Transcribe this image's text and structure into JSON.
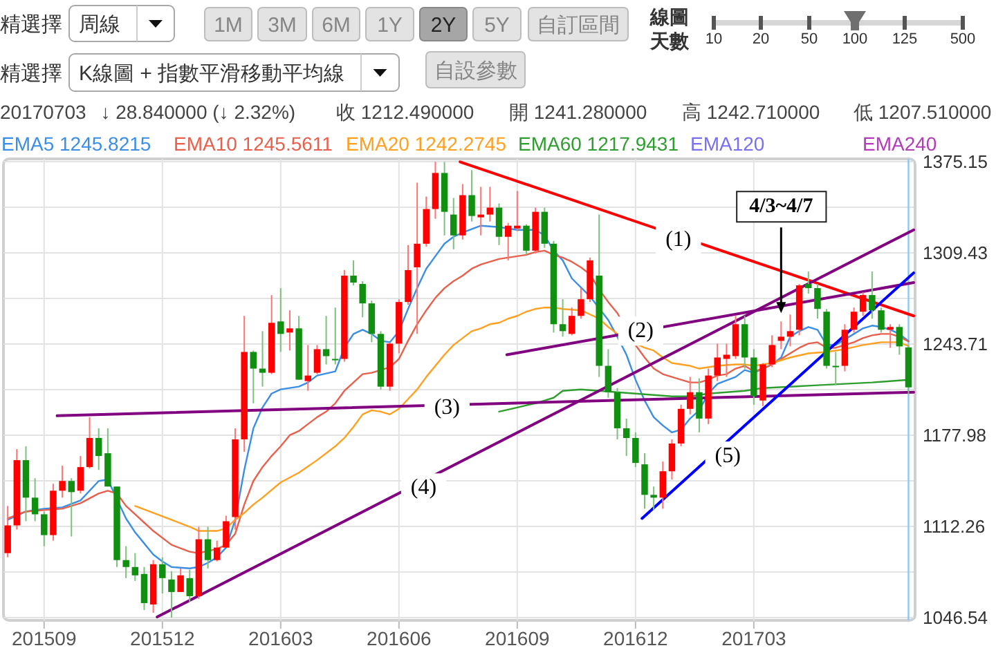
{
  "chart_data": {
    "type": "candlestick",
    "annotations": [
      "精選擇",
      "周線",
      "1M",
      "3M",
      "6M",
      "1Y",
      "2Y",
      "5Y",
      "自訂區間",
      "線圖",
      "天數",
      "10",
      "20",
      "50",
      "100",
      "125",
      "500",
      "精選擇",
      "K線圖 + 指數平滑移動平均線",
      "自設參數",
      "20170703",
      "↓ 28.840000 (↓ 2.32%)",
      "收 1212.490000",
      "開 1241.280000",
      "高 1242.710000",
      "低 1207.510000",
      {
        "text": "(1)",
        "x": "2017-01-07",
        "y": 1319
      },
      {
        "text": "(2)",
        "x": "2016-12-09",
        "y": 1253
      },
      {
        "text": "(3)",
        "x": "2016-07-13",
        "y": 1198
      },
      {
        "text": "(4)",
        "x": "2016-06-25",
        "y": 1140
      },
      {
        "text": "(5)",
        "x": "2017-02-14",
        "y": 1163
      },
      {
        "text": "4/3~4/7",
        "x": "2017-03-27",
        "y": 1265
      }
    ],
    "x": [
      "2015-08-10",
      "2015-08-17",
      "2015-08-24",
      "2015-08-31",
      "2015-09-07",
      "2015-09-14",
      "2015-09-21",
      "2015-09-28",
      "2015-10-05",
      "2015-10-12",
      "2015-10-19",
      "2015-10-26",
      "2015-11-02",
      "2015-11-09",
      "2015-11-16",
      "2015-11-23",
      "2015-11-30",
      "2015-12-07",
      "2015-12-14",
      "2015-12-21",
      "2015-12-28",
      "2016-01-04",
      "2016-01-11",
      "2016-01-18",
      "2016-01-25",
      "2016-02-01",
      "2016-02-08",
      "2016-02-15",
      "2016-02-22",
      "2016-02-29",
      "2016-03-07",
      "2016-03-14",
      "2016-03-21",
      "2016-03-28",
      "2016-04-04",
      "2016-04-11",
      "2016-04-18",
      "2016-04-25",
      "2016-05-02",
      "2016-05-09",
      "2016-05-16",
      "2016-05-23",
      "2016-05-30",
      "2016-06-06",
      "2016-06-13",
      "2016-06-20",
      "2016-06-27",
      "2016-07-04",
      "2016-07-11",
      "2016-07-18",
      "2016-07-25",
      "2016-08-01",
      "2016-08-08",
      "2016-08-15",
      "2016-08-22",
      "2016-08-29",
      "2016-09-05",
      "2016-09-12",
      "2016-09-19",
      "2016-09-26",
      "2016-10-03",
      "2016-10-10",
      "2016-10-17",
      "2016-10-24",
      "2016-10-31",
      "2016-11-07",
      "2016-11-14",
      "2016-11-21",
      "2016-11-28",
      "2016-12-05",
      "2016-12-12",
      "2016-12-19",
      "2016-12-26",
      "2017-01-02",
      "2017-01-09",
      "2017-01-16",
      "2017-01-23",
      "2017-01-30",
      "2017-02-06",
      "2017-02-13",
      "2017-02-20",
      "2017-02-27",
      "2017-03-06",
      "2017-03-13",
      "2017-03-20",
      "2017-03-27",
      "2017-04-03",
      "2017-04-10",
      "2017-04-17",
      "2017-04-24",
      "2017-05-01",
      "2017-05-08",
      "2017-05-15",
      "2017-05-22",
      "2017-05-29",
      "2017-06-05",
      "2017-06-12",
      "2017-06-19",
      "2017-06-26",
      "2017-07-03"
    ],
    "ohlc": [
      [
        1093,
        1127,
        1090,
        1113
      ],
      [
        1113,
        1168,
        1110,
        1160
      ],
      [
        1160,
        1170,
        1116,
        1133
      ],
      [
        1133,
        1147,
        1116,
        1121
      ],
      [
        1121,
        1123,
        1098,
        1106
      ],
      [
        1106,
        1143,
        1102,
        1138
      ],
      [
        1138,
        1156,
        1133,
        1145
      ],
      [
        1145,
        1147,
        1105,
        1137
      ],
      [
        1138,
        1163,
        1136,
        1155
      ],
      [
        1155,
        1191,
        1154,
        1176
      ],
      [
        1176,
        1183,
        1153,
        1163
      ],
      [
        1165,
        1183,
        1141,
        1141
      ],
      [
        1141,
        1141,
        1083,
        1088
      ],
      [
        1088,
        1098,
        1075,
        1083
      ],
      [
        1083,
        1093,
        1073,
        1077
      ],
      [
        1078,
        1083,
        1052,
        1057
      ],
      [
        1056,
        1088,
        1050,
        1085
      ],
      [
        1085,
        1090,
        1064,
        1075
      ],
      [
        1074,
        1080,
        1046.54,
        1065
      ],
      [
        1065,
        1082,
        1065,
        1077
      ],
      [
        1075,
        1081,
        1058,
        1062
      ],
      [
        1062,
        1112,
        1060,
        1103
      ],
      [
        1103,
        1112,
        1082,
        1088
      ],
      [
        1088,
        1102,
        1087,
        1097
      ],
      [
        1097,
        1120,
        1097,
        1116
      ],
      [
        1119,
        1183,
        1110,
        1175
      ],
      [
        1175,
        1264,
        1166,
        1238
      ],
      [
        1238,
        1239,
        1201,
        1226
      ],
      [
        1226,
        1253,
        1213,
        1223
      ],
      [
        1223,
        1279,
        1222,
        1259
      ],
      [
        1260,
        1284,
        1238,
        1251
      ],
      [
        1252,
        1268,
        1239,
        1255
      ],
      [
        1255,
        1264,
        1218,
        1218
      ],
      [
        1217,
        1243,
        1210,
        1221
      ],
      [
        1223,
        1243,
        1222,
        1240
      ],
      [
        1240,
        1264,
        1229,
        1235
      ],
      [
        1233,
        1270,
        1229,
        1232
      ],
      [
        1233,
        1297,
        1231,
        1293
      ],
      [
        1293,
        1304,
        1286,
        1288
      ],
      [
        1287,
        1289,
        1263,
        1273
      ],
      [
        1273,
        1275,
        1245,
        1251
      ],
      [
        1251,
        1253,
        1211,
        1213
      ],
      [
        1213,
        1245,
        1210,
        1244
      ],
      [
        1244,
        1276,
        1237,
        1274
      ],
      [
        1274,
        1315,
        1272,
        1297
      ],
      [
        1299,
        1360,
        1251,
        1316
      ],
      [
        1316,
        1350,
        1314,
        1341
      ],
      [
        1341,
        1375.15,
        1334,
        1367
      ],
      [
        1367,
        1375,
        1322,
        1339
      ],
      [
        1337,
        1349,
        1312,
        1322
      ],
      [
        1322,
        1359,
        1319,
        1351
      ],
      [
        1351,
        1369,
        1332,
        1336
      ],
      [
        1335,
        1357,
        1322,
        1337
      ],
      [
        1337,
        1357,
        1332,
        1342
      ],
      [
        1342,
        1345,
        1315,
        1321
      ],
      [
        1321,
        1331,
        1304,
        1329
      ],
      [
        1327,
        1354,
        1325,
        1329
      ],
      [
        1329,
        1330,
        1308,
        1311
      ],
      [
        1311,
        1342,
        1309,
        1339
      ],
      [
        1339,
        1342,
        1313,
        1316
      ],
      [
        1316,
        1318,
        1252,
        1258
      ],
      [
        1258,
        1276,
        1249,
        1253
      ],
      [
        1251,
        1270,
        1250,
        1264
      ],
      [
        1264,
        1284,
        1262,
        1276
      ],
      [
        1276,
        1306,
        1274,
        1304
      ],
      [
        1293,
        1337,
        1220,
        1228
      ],
      [
        1228,
        1240,
        1205,
        1209
      ],
      [
        1209,
        1212,
        1175,
        1183
      ],
      [
        1183,
        1190,
        1163,
        1176
      ],
      [
        1176,
        1180,
        1155,
        1158
      ],
      [
        1157,
        1165,
        1125,
        1135
      ],
      [
        1135,
        1141,
        1124,
        1133
      ],
      [
        1133,
        1159,
        1125,
        1152
      ],
      [
        1152,
        1175,
        1146,
        1172
      ],
      [
        1172,
        1200,
        1170,
        1197
      ],
      [
        1197,
        1220,
        1193,
        1209
      ],
      [
        1209,
        1219,
        1180,
        1190
      ],
      [
        1190,
        1226,
        1186,
        1221
      ],
      [
        1221,
        1244,
        1217,
        1234
      ],
      [
        1233,
        1244,
        1220,
        1236
      ],
      [
        1235,
        1264,
        1233,
        1258
      ],
      [
        1258,
        1264,
        1226,
        1234
      ],
      [
        1234,
        1240,
        1200,
        1206
      ],
      [
        1203,
        1230,
        1199,
        1229
      ],
      [
        1229,
        1250,
        1227,
        1243
      ],
      [
        1246,
        1260,
        1240,
        1249
      ],
      [
        1249,
        1265,
        1242,
        1253
      ],
      [
        1254,
        1287,
        1250,
        1286
      ],
      [
        1287,
        1296,
        1280,
        1284
      ],
      [
        1284,
        1287,
        1262,
        1269
      ],
      [
        1267,
        1269,
        1226,
        1228
      ],
      [
        1228,
        1238,
        1214,
        1227
      ],
      [
        1228,
        1258,
        1224,
        1254
      ],
      [
        1254,
        1270,
        1252,
        1267
      ],
      [
        1267,
        1281,
        1264,
        1279
      ],
      [
        1279,
        1296,
        1262,
        1268
      ],
      [
        1268,
        1270,
        1252,
        1254
      ],
      [
        1254,
        1258,
        1241,
        1256
      ],
      [
        1256,
        1258,
        1236,
        1242
      ],
      [
        1241.28,
        1242.71,
        1207.51,
        1212.49
      ]
    ],
    "colors": [
      "#ff0000",
      "#ff0000",
      "#108f10",
      "#108f10",
      "#108f10",
      "#ff0000",
      "#ff0000",
      "#108f10",
      "#ff0000",
      "#ff0000",
      "#108f10",
      "#108f10",
      "#108f10",
      "#108f10",
      "#108f10",
      "#108f10",
      "#ff0000",
      "#108f10",
      "#108f10",
      "#ff0000",
      "#108f10",
      "#ff0000",
      "#108f10",
      "#ff0000",
      "#ff0000",
      "#ff0000",
      "#ff0000",
      "#108f10",
      "#108f10",
      "#ff0000",
      "#108f10",
      "#ff0000",
      "#108f10",
      "#ff0000",
      "#ff0000",
      "#108f10",
      "#108f10",
      "#ff0000",
      "#108f10",
      "#108f10",
      "#108f10",
      "#108f10",
      "#ff0000",
      "#ff0000",
      "#ff0000",
      "#ff0000",
      "#ff0000",
      "#ff0000",
      "#108f10",
      "#108f10",
      "#ff0000",
      "#108f10",
      "#ff0000",
      "#ff0000",
      "#108f10",
      "#ff0000",
      "#ff0000",
      "#108f10",
      "#ff0000",
      "#108f10",
      "#108f10",
      "#108f10",
      "#ff0000",
      "#ff0000",
      "#ff0000",
      "#108f10",
      "#108f10",
      "#108f10",
      "#108f10",
      "#108f10",
      "#108f10",
      "#108f10",
      "#ff0000",
      "#ff0000",
      "#ff0000",
      "#ff0000",
      "#108f10",
      "#ff0000",
      "#ff0000",
      "#ff0000",
      "#ff0000",
      "#108f10",
      "#108f10",
      "#ff0000",
      "#ff0000",
      "#ff0000",
      "#ff0000",
      "#ff0000",
      "#108f10",
      "#108f10",
      "#108f10",
      "#108f10",
      "#ff0000",
      "#ff0000",
      "#ff0000",
      "#108f10",
      "#108f10",
      "#ff0000",
      "#108f10",
      "#108f10"
    ],
    "series": [
      {
        "name": "EMA5 1245.8215",
        "type": "line",
        "color": "#3a8ee6",
        "x": [
          "2015-08-10",
          "2015-08-24",
          "2015-09-07",
          "2015-09-21",
          "2015-10-05",
          "2015-10-19",
          "2015-10-26",
          "2015-11-09",
          "2015-11-16",
          "2015-11-23",
          "2015-11-30",
          "2015-12-07",
          "2015-12-14",
          "2015-12-28",
          "2016-01-04",
          "2016-01-11",
          "2016-01-18",
          "2016-01-25",
          "2016-02-01",
          "2016-02-08",
          "2016-02-15",
          "2016-02-22",
          "2016-02-29",
          "2016-03-07",
          "2016-03-21",
          "2016-03-28",
          "2016-04-04",
          "2016-04-18",
          "2016-04-25",
          "2016-05-02",
          "2016-05-09",
          "2016-05-16",
          "2016-05-23",
          "2016-05-30",
          "2016-06-06",
          "2016-06-13",
          "2016-06-20",
          "2016-06-27",
          "2016-07-04",
          "2016-07-11",
          "2016-07-18",
          "2016-07-25",
          "2016-08-08",
          "2016-08-22",
          "2016-09-05",
          "2016-09-19",
          "2016-09-26",
          "2016-10-03",
          "2016-10-10",
          "2016-10-17",
          "2016-10-31",
          "2016-11-14",
          "2016-11-21",
          "2016-11-28",
          "2016-12-05",
          "2016-12-12",
          "2016-12-19",
          "2016-12-26",
          "2017-01-02",
          "2017-01-09",
          "2017-01-16",
          "2017-01-23",
          "2017-01-30",
          "2017-02-06",
          "2017-02-20",
          "2017-02-27",
          "2017-03-06",
          "2017-03-20",
          "2017-03-27",
          "2017-04-03",
          "2017-04-10",
          "2017-04-17",
          "2017-04-24",
          "2017-05-01",
          "2017-05-08",
          "2017-05-15",
          "2017-05-22",
          "2017-05-29",
          "2017-06-05",
          "2017-06-12",
          "2017-06-19",
          "2017-06-26",
          "2017-07-03"
        ],
        "values": [
          1117,
          1123,
          1125,
          1126,
          1131,
          1145,
          1146,
          1118,
          1108,
          1100,
          1092,
          1087,
          1083,
          1082,
          1083,
          1086,
          1090,
          1097,
          1117,
          1153,
          1183,
          1198,
          1208,
          1211,
          1213,
          1216,
          1221,
          1224,
          1241,
          1251,
          1254,
          1251,
          1246,
          1245,
          1253,
          1269,
          1284,
          1298,
          1307,
          1316,
          1321,
          1324,
          1329,
          1328,
          1326,
          1326,
          1322,
          1311,
          1304,
          1291,
          1278,
          1261,
          1249,
          1236,
          1218,
          1203,
          1191,
          1185,
          1180,
          1182,
          1190,
          1196,
          1208,
          1215,
          1220,
          1225,
          1223,
          1229,
          1234,
          1249,
          1253,
          1256,
          1254,
          1243,
          1243,
          1247,
          1251,
          1255,
          1257,
          1256,
          1254,
          1251,
          1245.8215
        ]
      },
      {
        "name": "EMA10 1245.5611",
        "type": "line",
        "color": "#e8604c",
        "x": [
          "2015-08-10",
          "2015-08-24",
          "2015-09-07",
          "2015-09-21",
          "2015-10-05",
          "2015-10-19",
          "2015-10-26",
          "2015-11-02",
          "2015-11-09",
          "2015-11-16",
          "2015-11-23",
          "2015-11-30",
          "2015-12-14",
          "2015-12-28",
          "2016-01-04",
          "2016-01-18",
          "2016-01-25",
          "2016-02-01",
          "2016-02-08",
          "2016-02-15",
          "2016-02-22",
          "2016-02-29",
          "2016-03-07",
          "2016-03-14",
          "2016-03-21",
          "2016-03-28",
          "2016-04-04",
          "2016-04-11",
          "2016-04-18",
          "2016-04-25",
          "2016-05-02",
          "2016-05-09",
          "2016-05-16",
          "2016-05-23",
          "2016-05-30",
          "2016-06-06",
          "2016-06-13",
          "2016-06-20",
          "2016-06-27",
          "2016-07-04",
          "2016-07-11",
          "2016-07-18",
          "2016-07-25",
          "2016-08-01",
          "2016-08-08",
          "2016-08-15",
          "2016-08-22",
          "2016-08-29",
          "2016-09-05",
          "2016-09-12",
          "2016-09-19",
          "2016-09-26",
          "2016-10-03",
          "2016-10-10",
          "2016-10-17",
          "2016-10-24",
          "2016-10-31",
          "2016-11-07",
          "2016-11-14",
          "2016-11-21",
          "2016-12-05",
          "2016-12-12",
          "2016-12-19",
          "2016-12-26",
          "2017-01-02",
          "2017-01-09",
          "2017-01-16",
          "2017-01-23",
          "2017-01-30",
          "2017-02-06",
          "2017-02-13",
          "2017-02-20",
          "2017-02-27",
          "2017-03-06",
          "2017-03-13",
          "2017-03-20",
          "2017-03-27",
          "2017-04-03",
          "2017-04-10",
          "2017-04-17",
          "2017-04-24",
          "2017-05-01",
          "2017-05-08",
          "2017-05-15",
          "2017-05-22",
          "2017-05-29",
          "2017-06-05",
          "2017-06-12",
          "2017-06-19",
          "2017-06-26",
          "2017-07-03"
        ],
        "values": [
          1118,
          1123,
          1124,
          1125,
          1129,
          1136,
          1138,
          1136,
          1127,
          1121,
          1115,
          1109,
          1099,
          1094,
          1093,
          1096,
          1099,
          1107,
          1128,
          1145,
          1155,
          1163,
          1170,
          1178,
          1181,
          1186,
          1191,
          1195,
          1201,
          1210,
          1216,
          1222,
          1223,
          1225,
          1227,
          1233,
          1246,
          1258,
          1268,
          1277,
          1284,
          1289,
          1293,
          1298,
          1301,
          1303,
          1305,
          1306,
          1307,
          1308,
          1310,
          1311,
          1308,
          1306,
          1303,
          1299,
          1294,
          1283,
          1274,
          1266,
          1243,
          1234,
          1226,
          1222,
          1220,
          1218,
          1216,
          1216,
          1218,
          1221,
          1222,
          1226,
          1228,
          1224,
          1226,
          1229,
          1233,
          1237,
          1241,
          1244,
          1245,
          1241,
          1241,
          1243,
          1245,
          1248,
          1250,
          1251,
          1251,
          1249,
          1245.5611
        ]
      },
      {
        "name": "EMA20 1242.2745",
        "type": "line",
        "color": "#ffa020",
        "x": [
          "2015-11-16",
          "2015-11-30",
          "2015-12-14",
          "2015-12-28",
          "2016-01-04",
          "2016-01-18",
          "2016-01-25",
          "2016-02-01",
          "2016-02-08",
          "2016-02-15",
          "2016-02-22",
          "2016-03-07",
          "2016-03-21",
          "2016-04-04",
          "2016-04-18",
          "2016-04-25",
          "2016-05-02",
          "2016-05-09",
          "2016-05-16",
          "2016-05-23",
          "2016-05-30",
          "2016-06-06",
          "2016-06-13",
          "2016-06-20",
          "2016-06-27",
          "2016-07-04",
          "2016-07-11",
          "2016-07-18",
          "2016-07-25",
          "2016-08-01",
          "2016-08-08",
          "2016-08-15",
          "2016-08-22",
          "2016-08-29",
          "2016-09-05",
          "2016-09-12",
          "2016-09-19",
          "2016-09-26",
          "2016-10-03",
          "2016-10-10",
          "2016-10-24",
          "2016-11-07",
          "2016-11-14",
          "2016-11-21",
          "2016-12-05",
          "2016-12-12",
          "2016-12-19",
          "2016-12-26",
          "2017-01-02",
          "2017-01-09",
          "2017-01-16",
          "2017-01-23",
          "2017-01-30",
          "2017-02-06",
          "2017-02-20",
          "2017-02-27",
          "2017-03-06",
          "2017-03-20",
          "2017-04-03",
          "2017-04-17",
          "2017-05-01",
          "2017-05-15",
          "2017-05-29",
          "2017-06-12",
          "2017-06-26",
          "2017-07-03"
        ],
        "values": [
          1127,
          1122,
          1117,
          1112,
          1109,
          1109,
          1111,
          1117,
          1122,
          1128,
          1133,
          1144,
          1151,
          1160,
          1170,
          1176,
          1184,
          1193,
          1196,
          1195,
          1193,
          1197,
          1204,
          1211,
          1220,
          1228,
          1236,
          1243,
          1248,
          1253,
          1255,
          1258,
          1259,
          1262,
          1264,
          1267,
          1269,
          1270,
          1270,
          1269,
          1268,
          1262,
          1256,
          1251,
          1244,
          1241,
          1239,
          1234,
          1230,
          1229,
          1228,
          1226,
          1227,
          1228,
          1229,
          1229,
          1228,
          1230,
          1234,
          1237,
          1238,
          1240,
          1243,
          1245,
          1245,
          1242.2745
        ]
      },
      {
        "name": "EMA60 1217.9431",
        "type": "line",
        "color": "#2e9e2e",
        "x": [
          "2016-08-22",
          "2016-09-05",
          "2016-09-19",
          "2016-10-03",
          "2016-10-10",
          "2016-10-24",
          "2016-11-07",
          "2016-11-21",
          "2016-12-05",
          "2016-12-19",
          "2017-01-02",
          "2017-01-16",
          "2017-01-30",
          "2017-02-13",
          "2017-02-27",
          "2017-03-13",
          "2017-04-03",
          "2017-04-24",
          "2017-05-15",
          "2017-06-05",
          "2017-07-03"
        ],
        "values": [
          1195,
          1198,
          1201,
          1205,
          1210,
          1211,
          1210,
          1209,
          1208,
          1207,
          1206,
          1206,
          1208,
          1209,
          1210,
          1212,
          1213,
          1214,
          1215,
          1216,
          1217.9431
        ]
      },
      {
        "name": "EMA120",
        "type": "line",
        "color": "#7a6ff0",
        "values": [
          null,
          null,
          null,
          null,
          null,
          null,
          null,
          null,
          null,
          null,
          null,
          null,
          null,
          null,
          null,
          null,
          null,
          null,
          null,
          null,
          null,
          null,
          null,
          null,
          null,
          null,
          null,
          null,
          null,
          null,
          null,
          null,
          null,
          null,
          null,
          null,
          null,
          null,
          null,
          null,
          null,
          null,
          null,
          null,
          null,
          null,
          null,
          null,
          null,
          null,
          null,
          null,
          null,
          null,
          null,
          null,
          null,
          null,
          null,
          null,
          null,
          null,
          null,
          null,
          null,
          null,
          null,
          null,
          null,
          null,
          null,
          null,
          null,
          null,
          null,
          null,
          null,
          null,
          null,
          null,
          null,
          null,
          null,
          null,
          null,
          null,
          null,
          null,
          null,
          null,
          null,
          null,
          null,
          null,
          null,
          null,
          null,
          null,
          null,
          null
        ]
      },
      {
        "name": "EMA240",
        "type": "line",
        "color": "#b23cb8",
        "values": [
          null,
          null,
          null,
          null,
          null,
          null,
          null,
          null,
          null,
          null,
          null,
          null,
          null,
          null,
          null,
          null,
          null,
          null,
          null,
          null,
          null,
          null,
          null,
          null,
          null,
          null,
          null,
          null,
          null,
          null,
          null,
          null,
          null,
          null,
          null,
          null,
          null,
          null,
          null,
          null,
          null,
          null,
          null,
          null,
          null,
          null,
          null,
          null,
          null,
          null,
          null,
          null,
          null,
          null,
          null,
          null,
          null,
          null,
          null,
          null,
          null,
          null,
          null,
          null,
          null,
          null,
          null,
          null,
          null,
          null,
          null,
          null,
          null,
          null,
          null,
          null,
          null,
          null,
          null,
          null,
          null,
          null,
          null,
          null,
          null,
          null,
          null,
          null,
          null,
          null,
          null,
          null,
          null,
          null,
          null,
          null,
          null,
          null,
          null,
          null
        ]
      },
      {
        "type": "line",
        "color": "#ff0000",
        "x": [
          "2016-07-23",
          "2017-07-07"
        ],
        "values": [
          1375,
          1264
        ]
      },
      {
        "type": "line",
        "color": "#800080",
        "x": [
          "2016-08-28",
          "2017-07-07"
        ],
        "values": [
          1236,
          1288
        ]
      },
      {
        "type": "line",
        "color": "#800080",
        "x": [
          "2015-09-17",
          "2017-07-07"
        ],
        "values": [
          1192,
          1209
        ]
      },
      {
        "type": "line",
        "color": "#800080",
        "x": [
          "2015-12-03",
          "2017-07-07"
        ],
        "values": [
          1047,
          1326
        ]
      },
      {
        "type": "line",
        "color": "#0000ff",
        "x": [
          "2016-12-10",
          "2017-07-07"
        ],
        "values": [
          1118,
          1295
        ]
      }
    ],
    "ref_lines": [
      {
        "axis": "x",
        "value": "2017-07-03",
        "color": "#8cc8f0"
      }
    ],
    "xlim": [
      "2015-08-08",
      "2017-07-07"
    ],
    "xticks": [
      {
        "value": "2015-09-07",
        "label": "201509"
      },
      {
        "value": "2015-12-07",
        "label": "201512"
      },
      {
        "value": "2016-03-07",
        "label": "201603"
      },
      {
        "value": "2016-06-06",
        "label": "201606"
      },
      {
        "value": "2016-09-05",
        "label": "201609"
      },
      {
        "value": "2016-12-05",
        "label": "201612"
      },
      {
        "value": "2017-03-06",
        "label": "201703"
      }
    ],
    "ylim": [
      1046.54,
      1375.15
    ],
    "yticks": [
      1046.54,
      {
        "value": 1079.4,
        "label": null
      },
      1112.26,
      {
        "value": 1145.12,
        "label": null
      },
      1177.98,
      {
        "value": 1210.84,
        "label": null
      },
      1243.71,
      {
        "value": 1276.57,
        "label": null
      },
      1309.43,
      {
        "value": 1342.29,
        "label": null
      },
      1375.15
    ],
    "grid": true,
    "legend": "top"
  }
}
